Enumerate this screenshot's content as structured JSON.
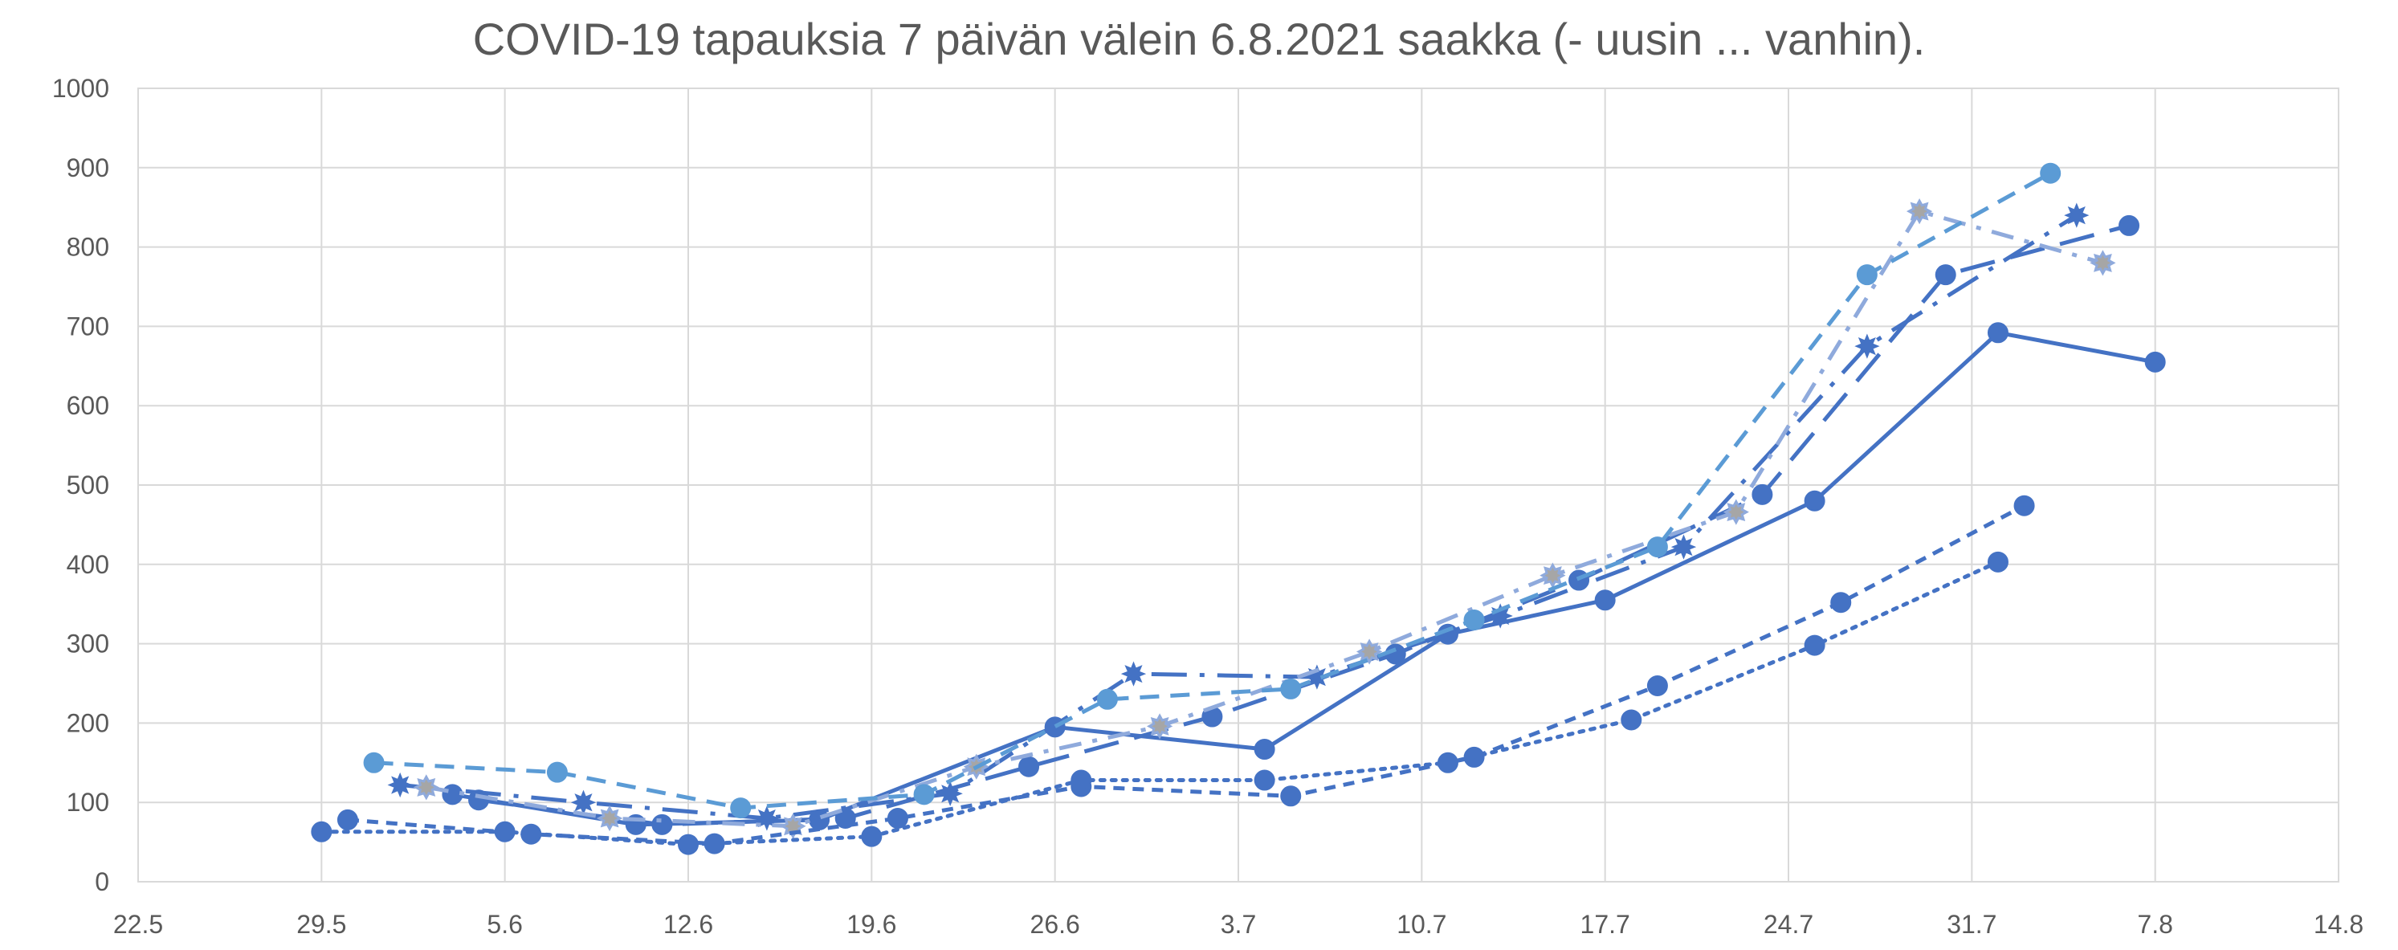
{
  "chart_data": {
    "type": "line",
    "title": "COVID-19 tapauksia 7 päivän välein 6.8.2021 saakka (- uusin ... vanhin).",
    "xlabel": "",
    "ylabel": "",
    "x_ticks": [
      "22.5",
      "29.5",
      "5.6",
      "12.6",
      "19.6",
      "26.6",
      "3.7",
      "10.7",
      "17.7",
      "24.7",
      "31.7",
      "7.8",
      "14.8"
    ],
    "xlim": [
      "2021-05-22",
      "2021-08-14"
    ],
    "ylim": [
      0,
      1000
    ],
    "y_ticks": [
      "0",
      "100",
      "200",
      "300",
      "400",
      "500",
      "600",
      "700",
      "800",
      "900",
      "1000"
    ],
    "grid": true,
    "legend": "none",
    "series": [
      {
        "color": "#4472c4",
        "dash": "solid",
        "marker": "circle",
        "points": [
          {
            "x": "2021-06-03",
            "y": 110
          },
          {
            "x": "2021-06-10",
            "y": 72
          },
          {
            "x": "2021-06-17",
            "y": 78
          },
          {
            "x": "2021-06-26",
            "y": 195
          },
          {
            "x": "2021-07-04",
            "y": 167
          },
          {
            "x": "2021-07-11",
            "y": 312
          },
          {
            "x": "2021-07-17",
            "y": 355
          },
          {
            "x": "2021-07-25",
            "y": 480
          },
          {
            "x": "2021-08-01",
            "y": 692
          },
          {
            "x": "2021-08-07",
            "y": 655
          }
        ]
      },
      {
        "color": "#4472c4",
        "dash": "longdash",
        "marker": "circle",
        "points": [
          {
            "x": "2021-06-04",
            "y": 103
          },
          {
            "x": "2021-06-11",
            "y": 72
          },
          {
            "x": "2021-06-18",
            "y": 80
          },
          {
            "x": "2021-06-25",
            "y": 145
          },
          {
            "x": "2021-07-02",
            "y": 208
          },
          {
            "x": "2021-07-09",
            "y": 287
          },
          {
            "x": "2021-07-16",
            "y": 380
          },
          {
            "x": "2021-07-23",
            "y": 488
          },
          {
            "x": "2021-07-30",
            "y": 765
          },
          {
            "x": "2021-08-06",
            "y": 827
          }
        ]
      },
      {
        "color": "#4472c4",
        "dash": "longdashdot",
        "marker": "star",
        "points": [
          {
            "x": "2021-06-01",
            "y": 122
          },
          {
            "x": "2021-06-08",
            "y": 100
          },
          {
            "x": "2021-06-15",
            "y": 80
          },
          {
            "x": "2021-06-22",
            "y": 111
          },
          {
            "x": "2021-06-29",
            "y": 262
          },
          {
            "x": "2021-07-06",
            "y": 258
          },
          {
            "x": "2021-07-13",
            "y": 335
          },
          {
            "x": "2021-07-20",
            "y": 422
          },
          {
            "x": "2021-07-27",
            "y": 675
          },
          {
            "x": "2021-08-04",
            "y": 840
          }
        ]
      },
      {
        "color": "#8faadc",
        "dash": "dashdot",
        "marker": "star-gray",
        "points": [
          {
            "x": "2021-06-02",
            "y": 119
          },
          {
            "x": "2021-06-09",
            "y": 80
          },
          {
            "x": "2021-06-16",
            "y": 70
          },
          {
            "x": "2021-06-23",
            "y": 145
          },
          {
            "x": "2021-06-30",
            "y": 196
          },
          {
            "x": "2021-07-08",
            "y": 290
          },
          {
            "x": "2021-07-15",
            "y": 386
          },
          {
            "x": "2021-07-22",
            "y": 466
          },
          {
            "x": "2021-07-29",
            "y": 845
          },
          {
            "x": "2021-08-05",
            "y": 780
          }
        ]
      },
      {
        "color": "#5b9bd5",
        "dash": "dash",
        "marker": "circle",
        "points": [
          {
            "x": "2021-05-31",
            "y": 150
          },
          {
            "x": "2021-06-07",
            "y": 138
          },
          {
            "x": "2021-06-14",
            "y": 93
          },
          {
            "x": "2021-06-21",
            "y": 110
          },
          {
            "x": "2021-06-28",
            "y": 230
          },
          {
            "x": "2021-07-05",
            "y": 243
          },
          {
            "x": "2021-07-12",
            "y": 330
          },
          {
            "x": "2021-07-19",
            "y": 422
          },
          {
            "x": "2021-07-27",
            "y": 765
          },
          {
            "x": "2021-08-03",
            "y": 893
          }
        ]
      },
      {
        "color": "#4472c4",
        "dash": "shortdash",
        "marker": "circle",
        "points": [
          {
            "x": "2021-05-30",
            "y": 78
          },
          {
            "x": "2021-06-06",
            "y": 60
          },
          {
            "x": "2021-06-13",
            "y": 48
          },
          {
            "x": "2021-06-20",
            "y": 80
          },
          {
            "x": "2021-06-27",
            "y": 120
          },
          {
            "x": "2021-07-05",
            "y": 108
          },
          {
            "x": "2021-07-12",
            "y": 157
          },
          {
            "x": "2021-07-19",
            "y": 247
          },
          {
            "x": "2021-07-26",
            "y": 352
          },
          {
            "x": "2021-08-02",
            "y": 474
          }
        ]
      },
      {
        "color": "#4472c4",
        "dash": "dot",
        "marker": "circle",
        "points": [
          {
            "x": "2021-05-29",
            "y": 63
          },
          {
            "x": "2021-06-05",
            "y": 63
          },
          {
            "x": "2021-06-12",
            "y": 47
          },
          {
            "x": "2021-06-19",
            "y": 57
          },
          {
            "x": "2021-06-27",
            "y": 128
          },
          {
            "x": "2021-07-04",
            "y": 128
          },
          {
            "x": "2021-07-11",
            "y": 150
          },
          {
            "x": "2021-07-18",
            "y": 204
          },
          {
            "x": "2021-07-25",
            "y": 298
          },
          {
            "x": "2021-08-01",
            "y": 403
          }
        ]
      }
    ]
  }
}
